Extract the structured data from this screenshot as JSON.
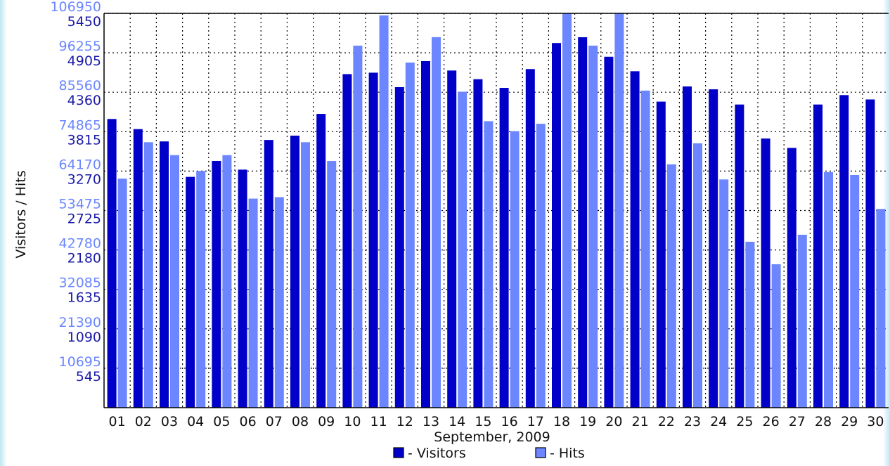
{
  "chart_data": {
    "type": "bar",
    "xlabel": "September, 2009",
    "ylabel": "Visitors / Hits",
    "categories": [
      "01",
      "02",
      "03",
      "04",
      "05",
      "06",
      "07",
      "08",
      "09",
      "10",
      "11",
      "12",
      "13",
      "14",
      "15",
      "16",
      "17",
      "18",
      "19",
      "20",
      "21",
      "22",
      "23",
      "24",
      "25",
      "26",
      "27",
      "28",
      "29",
      "30"
    ],
    "series": [
      {
        "name": "- Visitors",
        "axis": "left-dark",
        "color": "#0000c8",
        "values": [
          3990,
          3850,
          3680,
          3190,
          3410,
          3290,
          3700,
          3760,
          4060,
          4610,
          4630,
          4430,
          4790,
          4660,
          4540,
          4420,
          4680,
          5040,
          5120,
          4850,
          4650,
          4230,
          4440,
          4400,
          4190,
          3720,
          3590,
          4190,
          4320,
          4260
        ]
      },
      {
        "name": "- Hits",
        "axis": "left-light",
        "color": "#6b86ff",
        "values": [
          62130,
          72000,
          68500,
          64200,
          68500,
          56700,
          57100,
          72000,
          66900,
          98200,
          106400,
          93600,
          100500,
          85700,
          77700,
          75000,
          77000,
          106950,
          98200,
          106950,
          86000,
          66000,
          71700,
          61900,
          45000,
          38900,
          46900,
          63900,
          63100,
          53900
        ]
      }
    ],
    "y_left_light_ticks": [
      "10695",
      "21390",
      "32085",
      "42780",
      "53475",
      "64170",
      "74865",
      "85560",
      "96255",
      "106950"
    ],
    "y_left_dark_ticks": [
      "545",
      "1090",
      "1635",
      "2180",
      "2725",
      "3270",
      "3815",
      "4360",
      "4905",
      "5450"
    ],
    "ylim_hits": [
      0,
      106950
    ],
    "ylim_visitors": [
      0,
      5450
    ],
    "grid": true,
    "legend_position": "bottom",
    "legend": [
      {
        "label": "- Visitors",
        "color": "#0000c8"
      },
      {
        "label": "- Hits",
        "color": "#6b86ff"
      }
    ]
  }
}
